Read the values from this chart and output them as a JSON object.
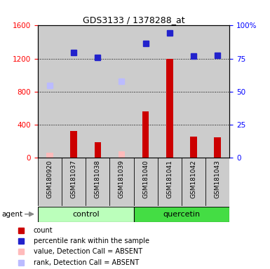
{
  "title": "GDS3133 / 1378288_at",
  "samples": [
    "GSM180920",
    "GSM181037",
    "GSM181038",
    "GSM181039",
    "GSM181040",
    "GSM181041",
    "GSM181042",
    "GSM181043"
  ],
  "count_values": [
    null,
    320,
    180,
    null,
    560,
    1200,
    250,
    240
  ],
  "rank_values": [
    null,
    1270,
    1210,
    null,
    1380,
    1510,
    1230,
    1235
  ],
  "absent_value": [
    60,
    null,
    null,
    70,
    null,
    null,
    null,
    null
  ],
  "absent_rank": [
    870,
    null,
    null,
    920,
    null,
    null,
    null,
    null
  ],
  "ylim_left": [
    0,
    1600
  ],
  "left_ticks": [
    0,
    400,
    800,
    1200,
    1600
  ],
  "right_tick_labels": [
    "0",
    "25",
    "50",
    "75",
    "100%"
  ],
  "right_tick_vals": [
    0,
    400,
    800,
    1200,
    1600
  ],
  "bar_color": "#cc0000",
  "rank_color": "#2222cc",
  "absent_value_color": "#ffbbbb",
  "absent_rank_color": "#bbbbff",
  "sample_bg": "#cccccc",
  "ctrl_color": "#bbffbb",
  "quer_color": "#44dd44",
  "group_label_control": "control",
  "group_label_quercetin": "quercetin",
  "agent_label": "agent"
}
